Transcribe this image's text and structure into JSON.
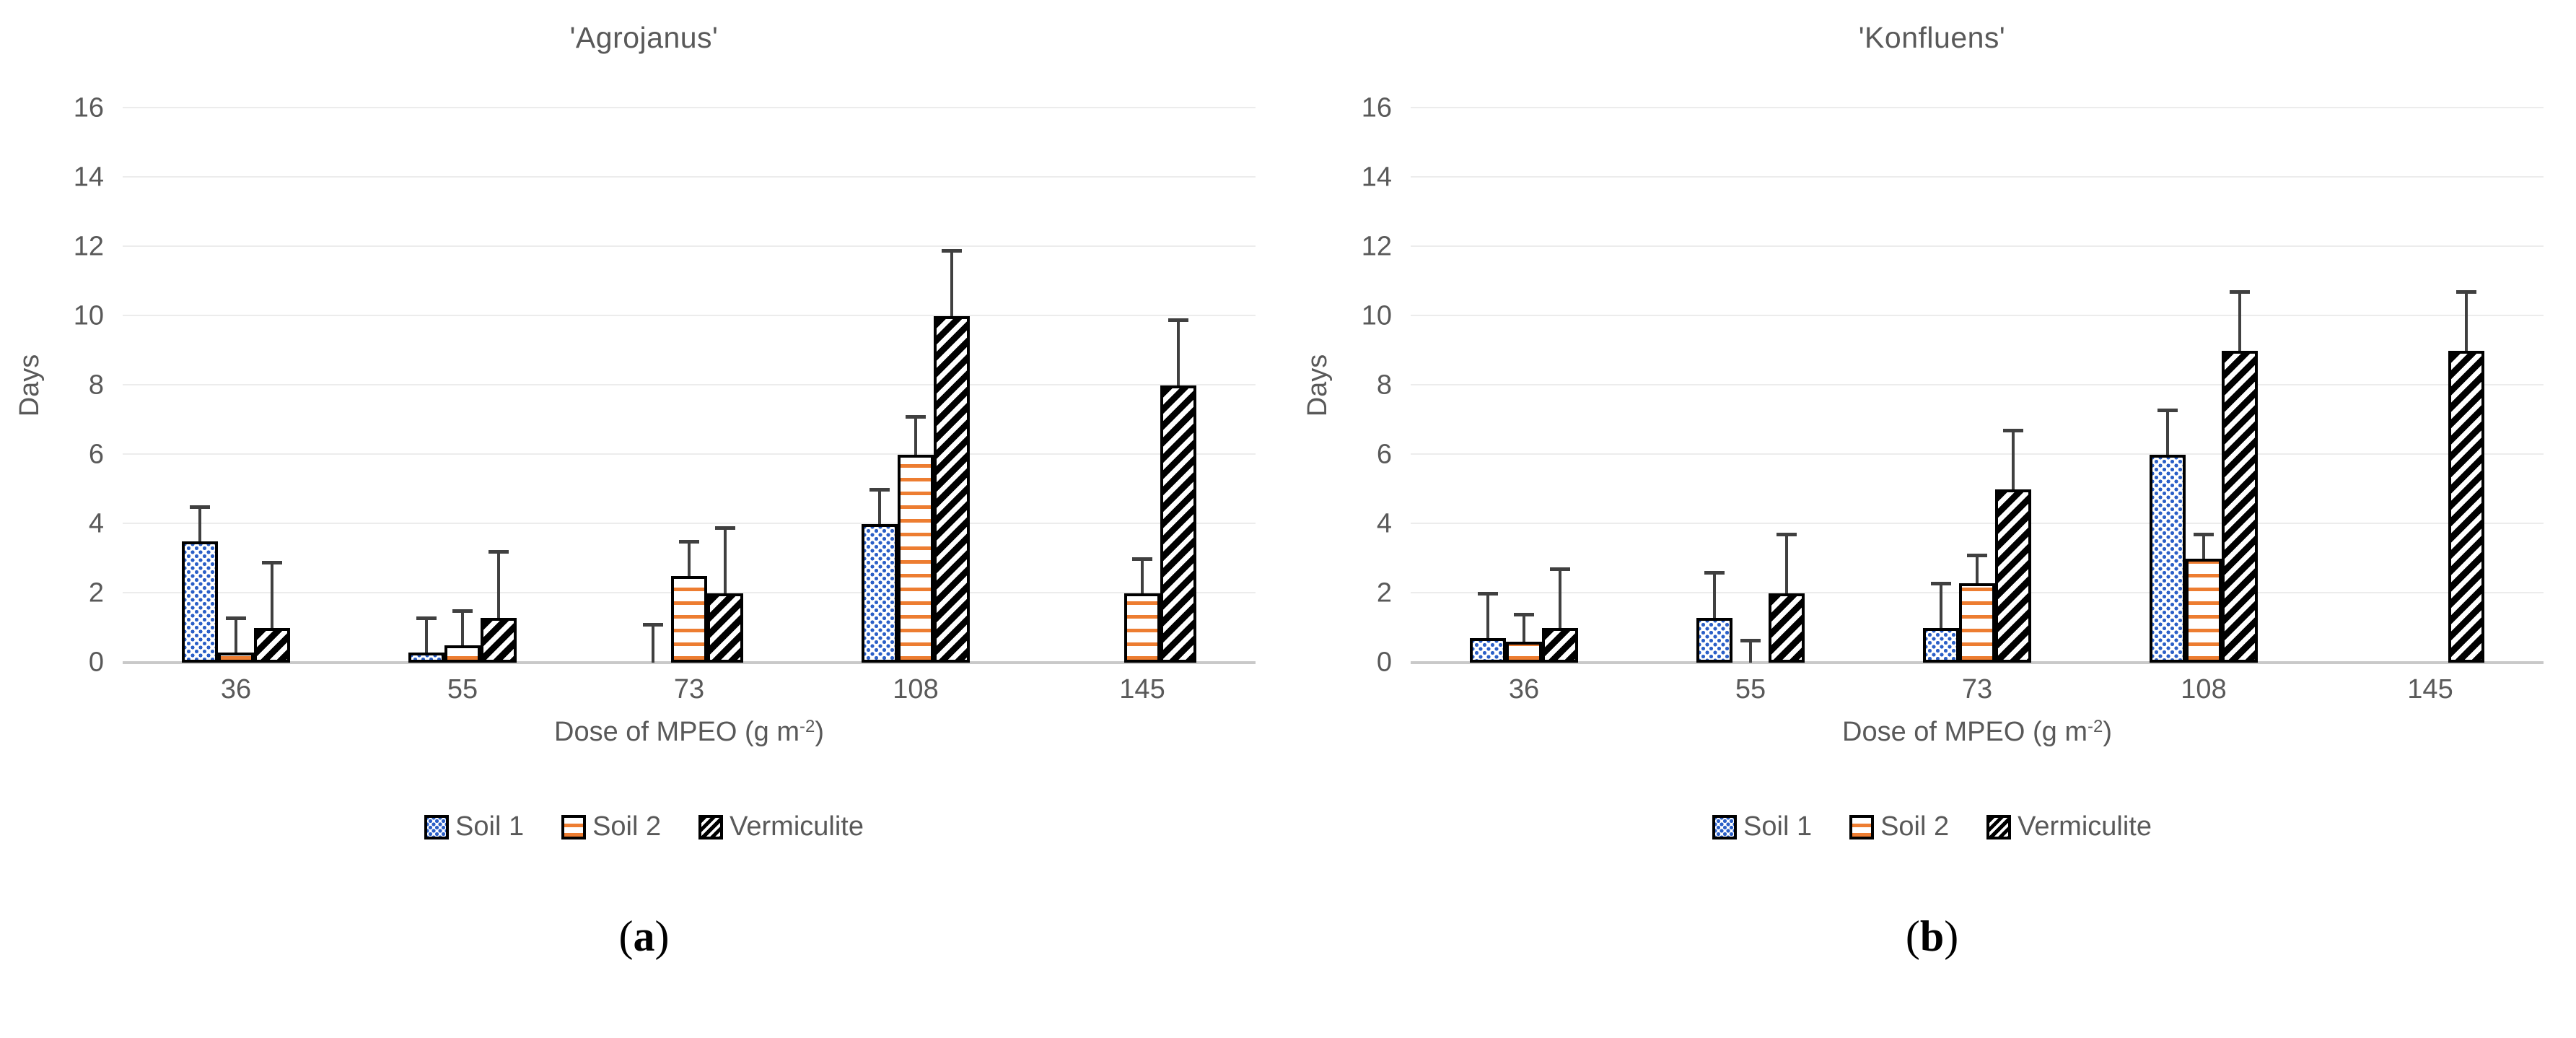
{
  "page": {
    "background": "#ffffff"
  },
  "colors": {
    "text_gray": "#595959",
    "soil1_blue": "#2B5FC7",
    "soil2_orange": "#ED7D31",
    "vermiculite_black": "#000000",
    "bar_border": "#000000",
    "error_bar": "#404040",
    "gridline": "#ECECEC",
    "baseline": "#C9C9C9",
    "caption_black": "#000000"
  },
  "legend": {
    "items": [
      {
        "label": "Soil 1",
        "pattern": "blue-dotted"
      },
      {
        "label": "Soil 2",
        "pattern": "orange-hstripes"
      },
      {
        "label": "Vermiculite",
        "pattern": "black-hatch"
      }
    ]
  },
  "chart_data": [
    {
      "type": "bar",
      "panel": "a",
      "title": "'Agrojanus'",
      "ylabel": "Days",
      "xlabel_main": "Dose of MPEO (g m",
      "xlabel_sup": "-2",
      "xlabel_close": ")",
      "ylim": [
        0,
        16
      ],
      "yticks": [
        0,
        2,
        4,
        6,
        8,
        10,
        12,
        14,
        16
      ],
      "grid": "horizontal-light",
      "legend_position": "bottom-center",
      "error_bars": "upper-only",
      "categories": [
        "36",
        "55",
        "73",
        "108",
        "145"
      ],
      "series": [
        {
          "name": "Soil 1",
          "pattern": "blue-dotted",
          "values": [
            3.5,
            0.3,
            0,
            4,
            null
          ],
          "err_top": [
            4.5,
            1.3,
            1.1,
            5,
            null
          ]
        },
        {
          "name": "Soil 2",
          "pattern": "orange-hstripes",
          "values": [
            0.3,
            0.5,
            2.5,
            6,
            2
          ],
          "err_top": [
            1.3,
            1.5,
            3.5,
            7.1,
            3
          ]
        },
        {
          "name": "Vermiculite",
          "pattern": "black-hatch",
          "values": [
            1,
            1.3,
            2,
            10,
            8
          ],
          "err_top": [
            2.9,
            3.2,
            3.9,
            11.9,
            9.9
          ]
        }
      ],
      "caption_open": "(",
      "caption_letter": "a",
      "caption_close": ")"
    },
    {
      "type": "bar",
      "panel": "b",
      "title": "'Konfluens'",
      "ylabel": "Days",
      "xlabel_main": "Dose of MPEO (g m",
      "xlabel_sup": "-2",
      "xlabel_close": ")",
      "ylim": [
        0,
        16
      ],
      "yticks": [
        0,
        2,
        4,
        6,
        8,
        10,
        12,
        14,
        16
      ],
      "grid": "horizontal-light",
      "legend_position": "bottom-center",
      "error_bars": "upper-only",
      "categories": [
        "36",
        "55",
        "73",
        "108",
        "145"
      ],
      "series": [
        {
          "name": "Soil 1",
          "pattern": "blue-dotted",
          "values": [
            0.7,
            1.3,
            1,
            6,
            null
          ],
          "err_top": [
            2,
            2.6,
            2.3,
            7.3,
            null
          ]
        },
        {
          "name": "Soil 2",
          "pattern": "orange-hstripes",
          "values": [
            0.6,
            0,
            2.3,
            3,
            null
          ],
          "err_top": [
            1.4,
            0.65,
            3.1,
            3.7,
            null
          ]
        },
        {
          "name": "Vermiculite",
          "pattern": "black-hatch",
          "values": [
            1,
            2,
            5,
            9,
            9
          ],
          "err_top": [
            2.7,
            3.7,
            6.7,
            10.7,
            10.7
          ]
        }
      ],
      "caption_open": "(",
      "caption_letter": "b",
      "caption_close": ")"
    }
  ]
}
